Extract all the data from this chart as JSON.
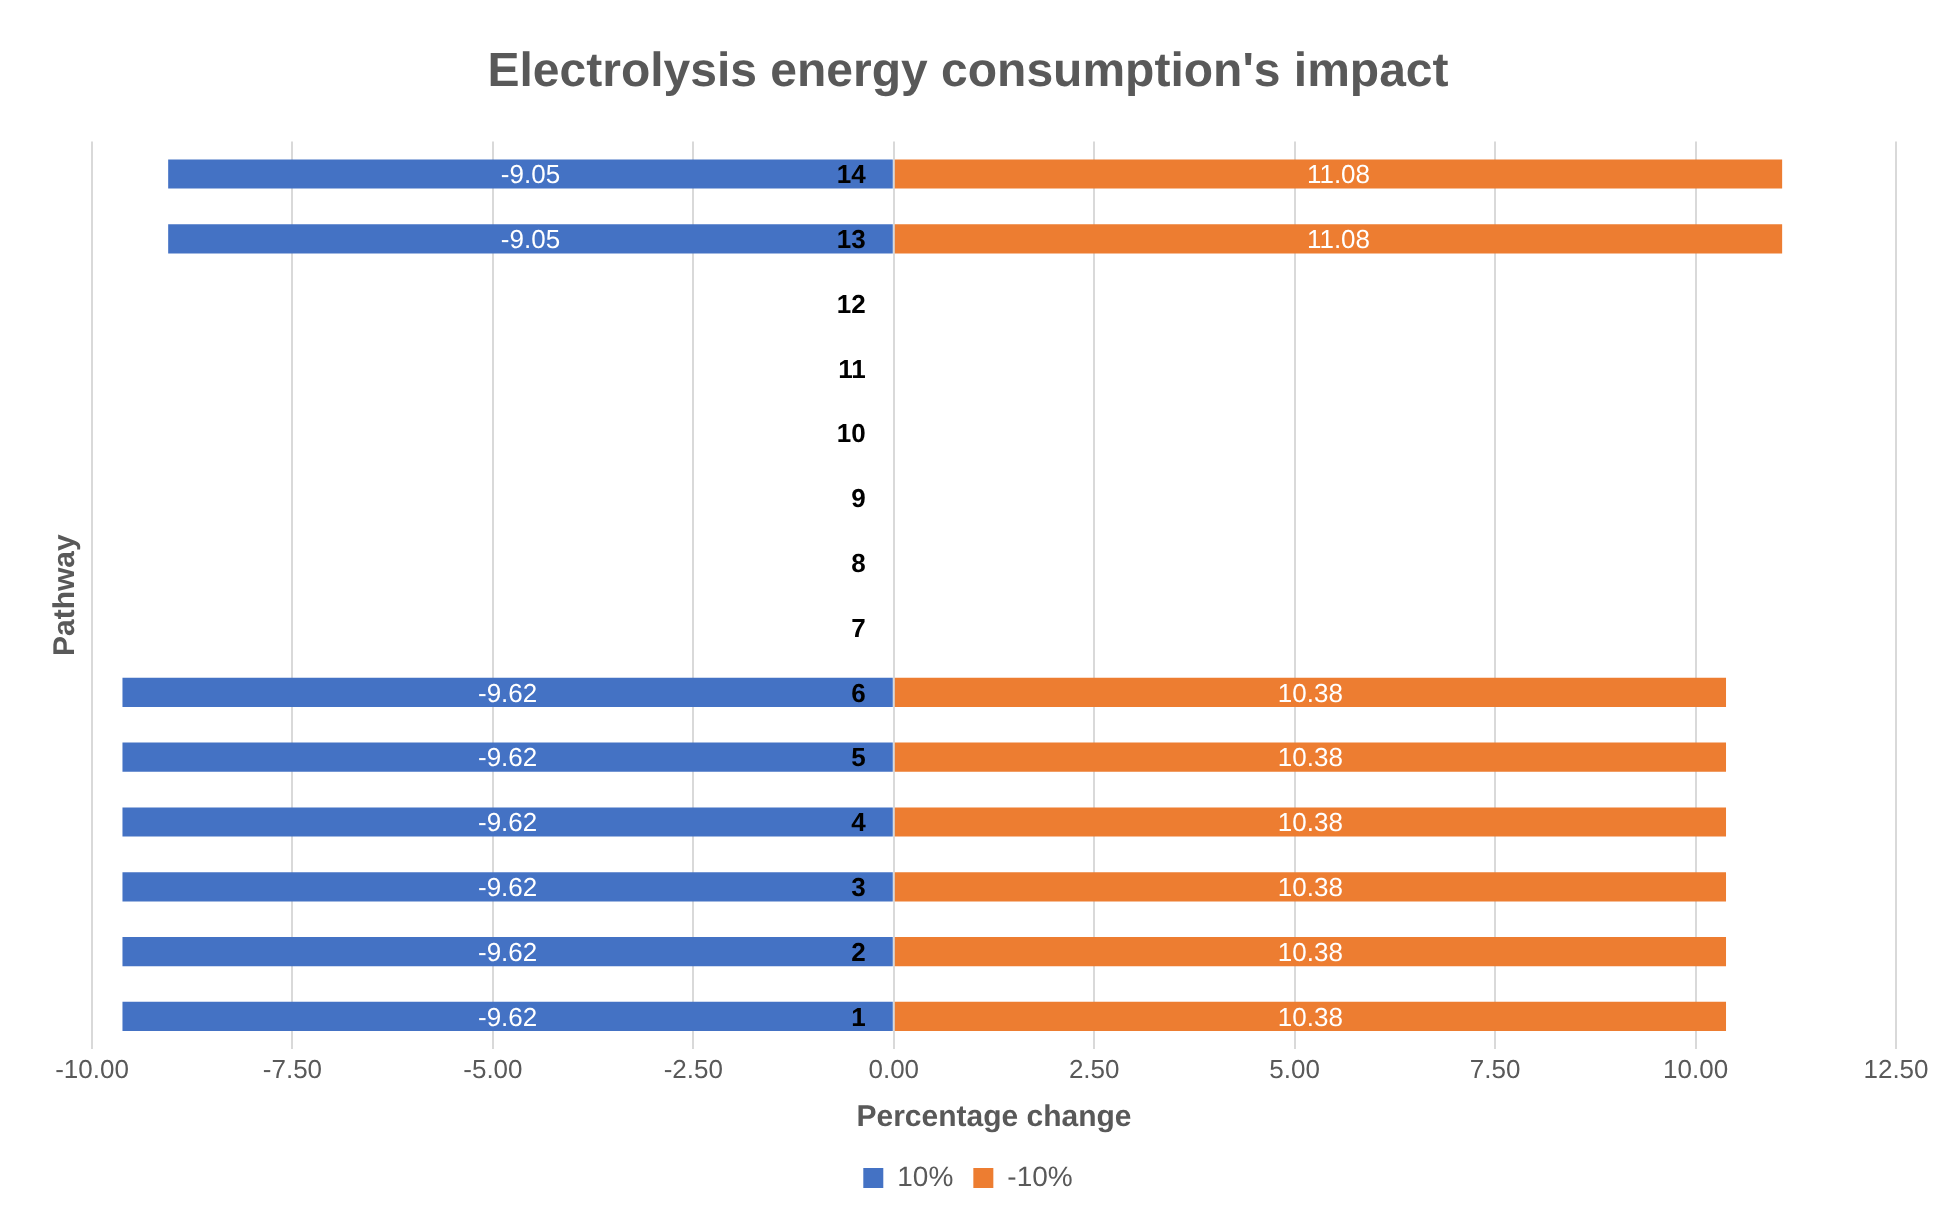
{
  "chart_data": {
    "type": "bar",
    "orientation": "horizontal",
    "stacked": true,
    "title": "Electrolysis energy consumption's impact",
    "xlabel": "Percentage change",
    "ylabel": "Pathway",
    "categories": [
      "14",
      "13",
      "12",
      "11",
      "10",
      "9",
      "8",
      "7",
      "6",
      "5",
      "4",
      "3",
      "2",
      "1"
    ],
    "series": [
      {
        "name": "10%",
        "color": "#4472c4",
        "values": [
          -9.05,
          -9.05,
          null,
          null,
          null,
          null,
          null,
          null,
          -9.62,
          -9.62,
          -9.62,
          -9.62,
          -9.62,
          -9.62
        ]
      },
      {
        "name": "-10%",
        "color": "#ed7d31",
        "values": [
          11.08,
          11.08,
          null,
          null,
          null,
          null,
          null,
          null,
          10.38,
          10.38,
          10.38,
          10.38,
          10.38,
          10.38
        ]
      }
    ],
    "xlim": [
      -10,
      12.5
    ],
    "xticks": [
      {
        "value": -10,
        "label": "-10.00"
      },
      {
        "value": -7.5,
        "label": "-7.50"
      },
      {
        "value": -5,
        "label": "-5.00"
      },
      {
        "value": -2.5,
        "label": "-2.50"
      },
      {
        "value": 0,
        "label": "0.00"
      },
      {
        "value": 2.5,
        "label": "2.50"
      },
      {
        "value": 5,
        "label": "5.00"
      },
      {
        "value": 7.5,
        "label": "7.50"
      },
      {
        "value": 10,
        "label": "10.00"
      },
      {
        "value": 12.5,
        "label": "12.50"
      }
    ],
    "grid": "x",
    "legend": "bottom",
    "data_labels": true
  }
}
